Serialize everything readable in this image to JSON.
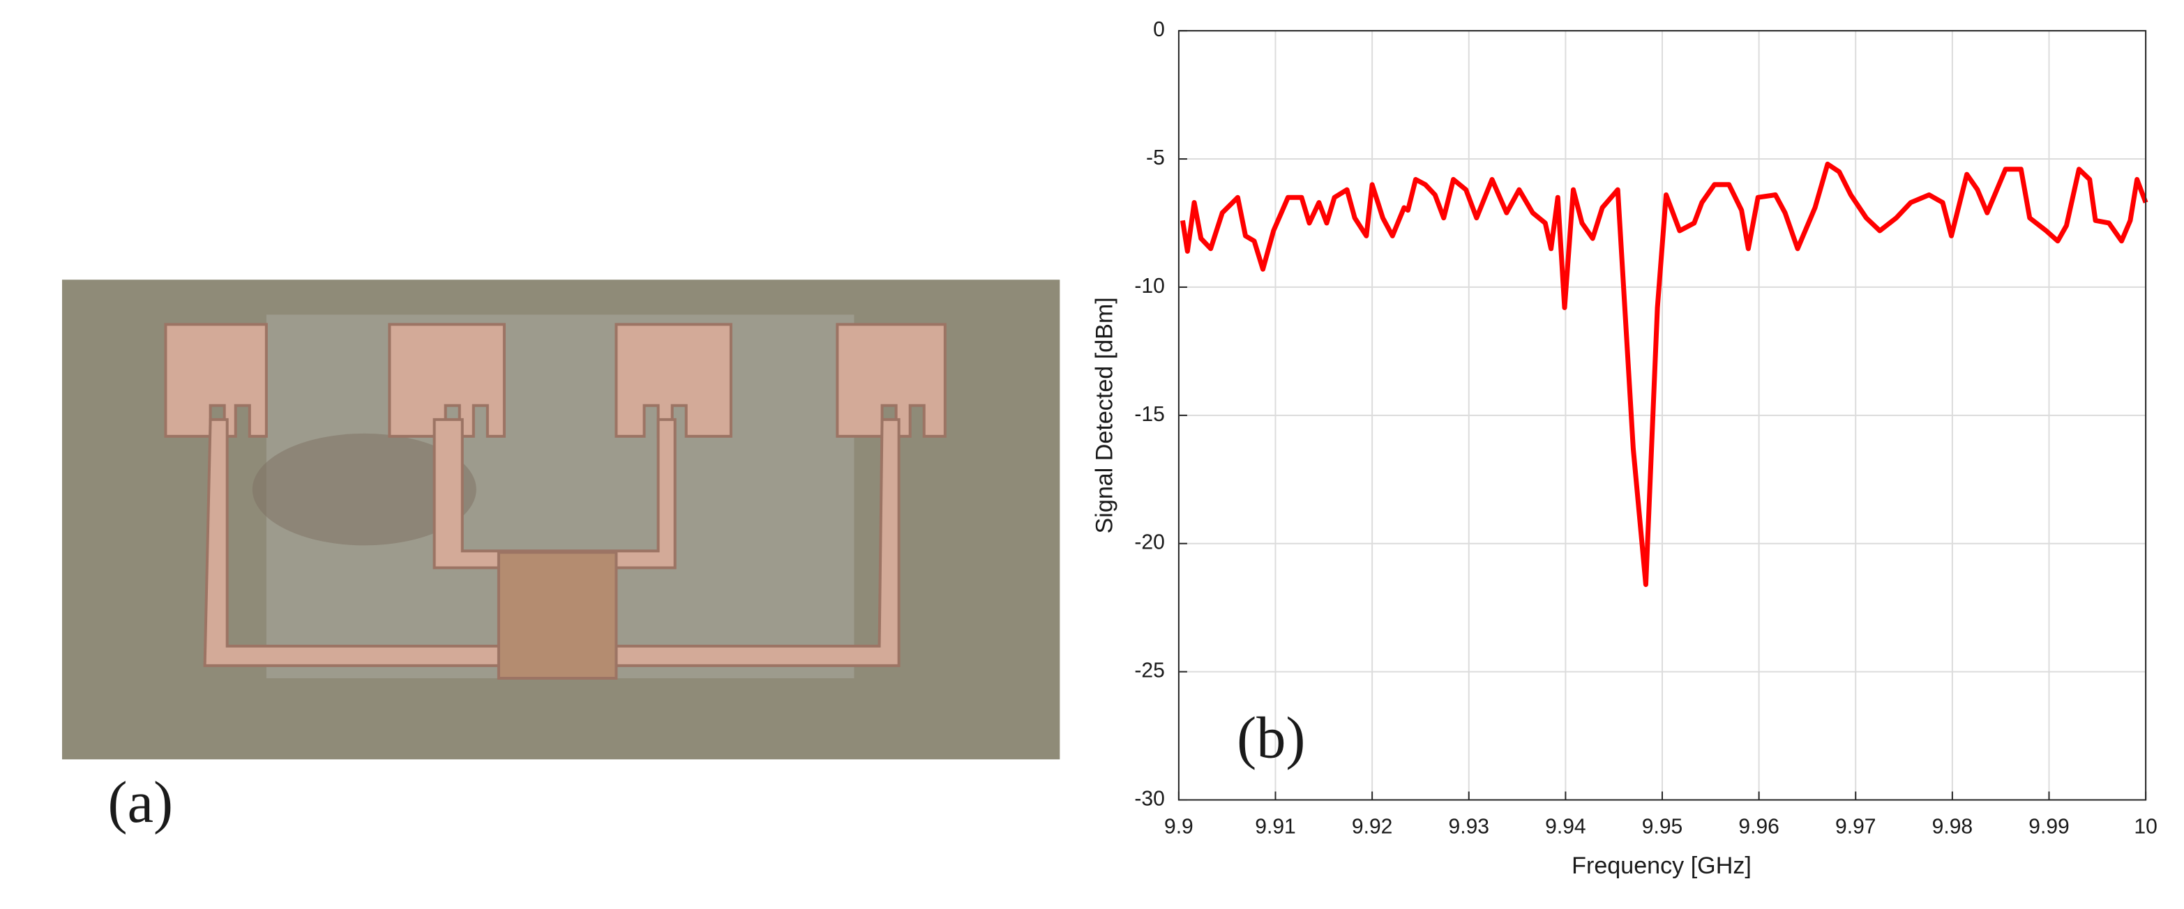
{
  "photo": {
    "label": "(a)"
  },
  "chart_data": {
    "type": "line",
    "annotation": "(b)",
    "x_label": "Frequency [GHz]",
    "y_label": "Signal Detected [dBm]",
    "xlim": [
      9.9,
      10
    ],
    "ylim": [
      -30,
      0
    ],
    "xticks": [
      9.9,
      9.91,
      9.92,
      9.93,
      9.94,
      9.95,
      9.96,
      9.97,
      9.98,
      9.99,
      10
    ],
    "yticks": [
      -30,
      -25,
      -20,
      -15,
      -10,
      -5,
      0
    ],
    "grid": true,
    "x": [
      9.9004,
      9.9009,
      9.9016,
      9.9023,
      9.9033,
      9.9045,
      9.9061,
      9.9069,
      9.9078,
      9.9087,
      9.9098,
      9.9113,
      9.9127,
      9.9135,
      9.9145,
      9.9153,
      9.9161,
      9.9174,
      9.9182,
      9.9194,
      9.92,
      9.9211,
      9.9221,
      9.9233,
      9.9237,
      9.9245,
      9.9255,
      9.9265,
      9.9274,
      9.9284,
      9.9297,
      9.9308,
      9.9324,
      9.9339,
      9.9352,
      9.9366,
      9.9379,
      9.9385,
      9.9392,
      9.9399,
      9.9408,
      9.9417,
      9.9428,
      9.9438,
      9.9454,
      9.947,
      9.9483,
      9.9495,
      9.9504,
      9.9518,
      9.9533,
      9.9541,
      9.9554,
      9.9569,
      9.9582,
      9.9589,
      9.9599,
      9.9617,
      9.9627,
      9.964,
      9.9658,
      9.9671,
      9.9683,
      9.9695,
      9.9711,
      9.9725,
      9.9742,
      9.9757,
      9.9776,
      9.979,
      9.9799,
      9.9815,
      9.9826,
      9.9836,
      9.9855,
      9.9871,
      9.988,
      9.9897,
      9.9909,
      9.9918,
      9.9931,
      9.9942,
      9.9948,
      9.9962,
      9.9975,
      9.9984,
      9.9991,
      10.0
    ],
    "series": [
      {
        "color": "#ff0000",
        "values": [
          -7.4,
          -8.6,
          -6.7,
          -8.1,
          -8.5,
          -7.1,
          -6.5,
          -8.0,
          -8.2,
          -9.3,
          -7.8,
          -6.5,
          -6.5,
          -7.5,
          -6.7,
          -7.5,
          -6.5,
          -6.2,
          -7.3,
          -8.0,
          -6.0,
          -7.3,
          -8.0,
          -6.9,
          -7.0,
          -5.8,
          -6.0,
          -6.4,
          -7.3,
          -5.8,
          -6.2,
          -7.3,
          -5.8,
          -7.1,
          -6.2,
          -7.1,
          -7.5,
          -8.5,
          -6.5,
          -10.8,
          -6.2,
          -7.5,
          -8.1,
          -6.9,
          -6.2,
          -16.3,
          -21.6,
          -10.8,
          -6.4,
          -7.8,
          -7.5,
          -6.7,
          -6.0,
          -6.0,
          -7.0,
          -8.5,
          -6.5,
          -6.4,
          -7.1,
          -8.5,
          -6.9,
          -5.2,
          -5.5,
          -6.4,
          -7.3,
          -7.8,
          -7.3,
          -6.7,
          -6.4,
          -6.7,
          -8.0,
          -5.6,
          -6.2,
          -7.1,
          -5.4,
          -5.4,
          -7.3,
          -7.8,
          -8.2,
          -7.6,
          -5.4,
          -5.8,
          -7.4,
          -7.5,
          -8.2,
          -7.4,
          -5.8,
          -6.7
        ]
      }
    ]
  }
}
